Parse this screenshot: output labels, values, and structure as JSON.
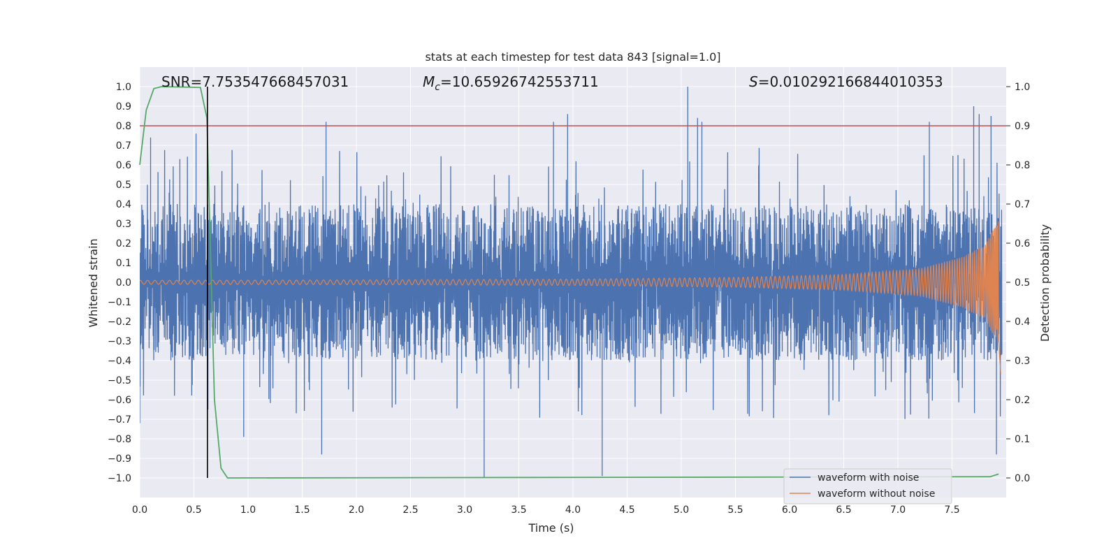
{
  "chart_data": {
    "type": "line",
    "title": "stats at each timestep for test data 843 [signal=1.0]",
    "xlabel": "Time (s)",
    "ylabel": "Whitened strain",
    "y2label": "Detection probability",
    "xlim": [
      0.0,
      8.0
    ],
    "ylim": [
      -1.1,
      1.1
    ],
    "y2lim": [
      -0.05,
      1.05
    ],
    "xticks": [
      0.0,
      0.5,
      1.0,
      1.5,
      2.0,
      2.5,
      3.0,
      3.5,
      4.0,
      4.5,
      5.0,
      5.5,
      6.0,
      6.5,
      7.0,
      7.5
    ],
    "xtick_labels": [
      "0.0",
      "0.5",
      "1.0",
      "1.5",
      "2.0",
      "2.5",
      "3.0",
      "3.5",
      "4.0",
      "4.5",
      "5.0",
      "5.5",
      "6.0",
      "6.5",
      "7.0",
      "7.5"
    ],
    "yticks": [
      1.0,
      0.9,
      0.8,
      0.7,
      0.6,
      0.5,
      0.4,
      0.3,
      0.2,
      0.1,
      0.0,
      -0.1,
      -0.2,
      -0.3,
      -0.4,
      -0.5,
      -0.6,
      -0.7,
      -0.8,
      -0.9,
      -1.0
    ],
    "ytick_labels": [
      "1.0",
      "0.9",
      "0.8",
      "0.7",
      "0.6",
      "0.5",
      "0.4",
      "0.3",
      "0.2",
      "0.1",
      "0.0",
      "−0.1",
      "−0.2",
      "−0.3",
      "−0.4",
      "−0.5",
      "−0.6",
      "−0.7",
      "−0.8",
      "−0.9",
      "−1.0"
    ],
    "y2ticks": [
      1.0,
      0.9,
      0.8,
      0.7,
      0.6,
      0.5,
      0.4,
      0.3,
      0.2,
      0.1,
      0.0
    ],
    "y2tick_labels": [
      "1.0",
      "0.9",
      "0.8",
      "0.7",
      "0.6",
      "0.5",
      "0.4",
      "0.3",
      "0.2",
      "0.1",
      "0.0"
    ],
    "annotations": {
      "snr": "SNR=7.753547668457031",
      "mc_symbol": "M",
      "mc_sub": "c",
      "mc_value": "=10.65926742553711",
      "s_symbol": "S",
      "s_value": "=0.010292166844010353"
    },
    "threshold": {
      "value": 0.9,
      "axis": "y2",
      "color": "#c44e52"
    },
    "marker_line": {
      "x": 0.625,
      "color": "#000000"
    },
    "series": [
      {
        "name": "waveform with noise",
        "color": "#4c72b0",
        "description": "Whitened noisy strain; dense band roughly between -0.4 and 0.4 with spikes up to about 1.0 and down to about -1.0",
        "band": [
          -0.4,
          0.4
        ],
        "peak_spikes": [
          {
            "x": 0.0,
            "y": -0.72
          },
          {
            "x": 0.1,
            "y": 0.74
          },
          {
            "x": 0.37,
            "y": 0.63
          },
          {
            "x": 0.52,
            "y": 0.76
          },
          {
            "x": 0.63,
            "y": -0.65
          },
          {
            "x": 0.96,
            "y": -0.79
          },
          {
            "x": 1.72,
            "y": 0.82
          },
          {
            "x": 1.68,
            "y": -0.88
          },
          {
            "x": 3.18,
            "y": -1.0
          },
          {
            "x": 3.82,
            "y": 0.82
          },
          {
            "x": 3.95,
            "y": 0.86
          },
          {
            "x": 4.27,
            "y": -0.99
          },
          {
            "x": 5.06,
            "y": 1.0
          },
          {
            "x": 5.15,
            "y": 0.84
          },
          {
            "x": 5.19,
            "y": 0.82
          },
          {
            "x": 7.29,
            "y": 0.82
          },
          {
            "x": 7.7,
            "y": 0.9
          },
          {
            "x": 7.75,
            "y": 0.86
          },
          {
            "x": 7.86,
            "y": 0.85
          },
          {
            "x": 7.91,
            "y": -0.88
          }
        ]
      },
      {
        "name": "waveform without noise",
        "color": "#dd8452",
        "description": "Clean inspiral chirp; amplitude grows from about 0.01 near t=0 to about 0.32 at merger near t=7.95 s",
        "amplitude_envelope": [
          {
            "x": 0.0,
            "y": 0.01
          },
          {
            "x": 2.0,
            "y": 0.012
          },
          {
            "x": 4.0,
            "y": 0.016
          },
          {
            "x": 5.5,
            "y": 0.025
          },
          {
            "x": 6.5,
            "y": 0.04
          },
          {
            "x": 7.2,
            "y": 0.07
          },
          {
            "x": 7.6,
            "y": 0.13
          },
          {
            "x": 7.8,
            "y": 0.19
          },
          {
            "x": 7.93,
            "y": 0.32
          }
        ]
      },
      {
        "name": "detection probability",
        "axis": "y2",
        "color": "#55a868",
        "points": [
          {
            "x": 0.0,
            "y": 0.8
          },
          {
            "x": 0.06,
            "y": 0.94
          },
          {
            "x": 0.13,
            "y": 0.995
          },
          {
            "x": 0.2,
            "y": 1.0
          },
          {
            "x": 0.56,
            "y": 0.998
          },
          {
            "x": 0.62,
            "y": 0.92
          },
          {
            "x": 0.69,
            "y": 0.2
          },
          {
            "x": 0.75,
            "y": 0.025
          },
          {
            "x": 0.81,
            "y": 0.0
          },
          {
            "x": 7.85,
            "y": 0.003
          },
          {
            "x": 7.93,
            "y": 0.01
          }
        ]
      }
    ],
    "legend": {
      "placement": "lower-right",
      "entries": [
        {
          "label": "waveform with noise",
          "color": "#4c72b0"
        },
        {
          "label": "waveform without noise",
          "color": "#dd8452"
        }
      ]
    },
    "grid": true,
    "background": "#eaeaf2"
  }
}
